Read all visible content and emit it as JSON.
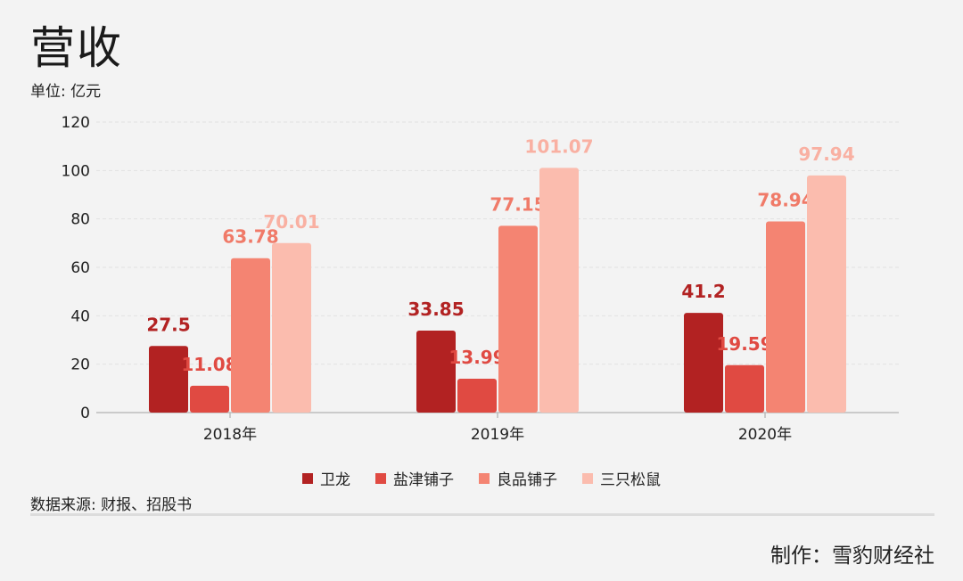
{
  "title": "营收",
  "unit_label": "单位: 亿元",
  "source_label": "数据来源: 财报、招股书",
  "credit_label": "制作：雪豹财经社",
  "legend": [
    {
      "label": "卫龙",
      "color": "#b22222"
    },
    {
      "label": "盐津铺子",
      "color": "#e04a42"
    },
    {
      "label": "良品铺子",
      "color": "#f48472"
    },
    {
      "label": "三只松鼠",
      "color": "#fbbcae"
    }
  ],
  "chart_data": {
    "type": "bar",
    "categories": [
      "2018年",
      "2019年",
      "2020年"
    ],
    "series": [
      {
        "name": "卫龙",
        "values": [
          27.5,
          33.85,
          41.2
        ],
        "labels": [
          "27.5",
          "33.85",
          "41.2"
        ],
        "color": "#b22222",
        "label_color": "#b22222"
      },
      {
        "name": "盐津铺子",
        "values": [
          11.08,
          13.99,
          19.59
        ],
        "labels": [
          "11.08",
          "13.99",
          "19.59"
        ],
        "color": "#e04a42",
        "label_color": "#e04a42"
      },
      {
        "name": "良品铺子",
        "values": [
          63.78,
          77.15,
          78.94
        ],
        "labels": [
          "63.78",
          "77.15",
          "78.94"
        ],
        "color": "#f48472",
        "label_color": "#f07a68"
      },
      {
        "name": "三只松鼠",
        "values": [
          70.01,
          101.07,
          97.94
        ],
        "labels": [
          "70.01",
          "101.07",
          "97.94"
        ],
        "color": "#fbbcae",
        "label_color": "#f9b0a2"
      }
    ],
    "ylim": [
      0,
      120
    ],
    "yticks": [
      "0",
      "20",
      "40",
      "60",
      "80",
      "100",
      "120"
    ],
    "grid": true,
    "legend_position": "bottom-center"
  }
}
